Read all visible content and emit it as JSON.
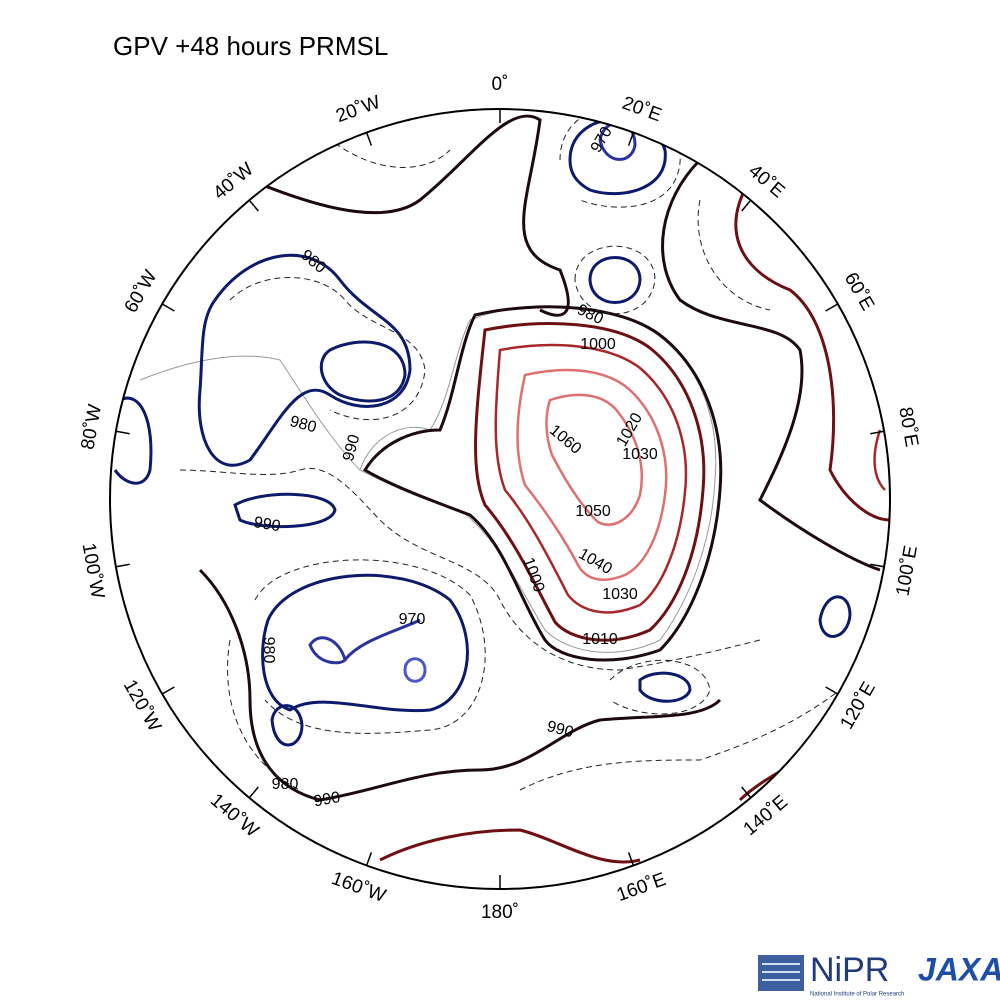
{
  "header": {
    "title": "GPV +48 hours PRMSL"
  },
  "map": {
    "longitude_labels": [
      "0˚",
      "20˚E",
      "40˚E",
      "60˚E",
      "80˚E",
      "100˚E",
      "120˚E",
      "140˚E",
      "160˚E",
      "180˚",
      "160˚W",
      "140˚W",
      "120˚W",
      "100˚W",
      "80˚W",
      "60˚W",
      "40˚W",
      "20˚W"
    ],
    "contour_labels": [
      "970",
      "980",
      "980",
      "1000",
      "980",
      "990",
      "990",
      "1060",
      "1020",
      "1030",
      "1050",
      "1040",
      "1030",
      "1000",
      "1010",
      "970",
      "980",
      "990",
      "980",
      "990"
    ]
  },
  "footer": {
    "logo_nipr": "NiPR",
    "logo_nipr_sub": "National Institute of Polar Research",
    "logo_jaxa": "JAXA"
  }
}
